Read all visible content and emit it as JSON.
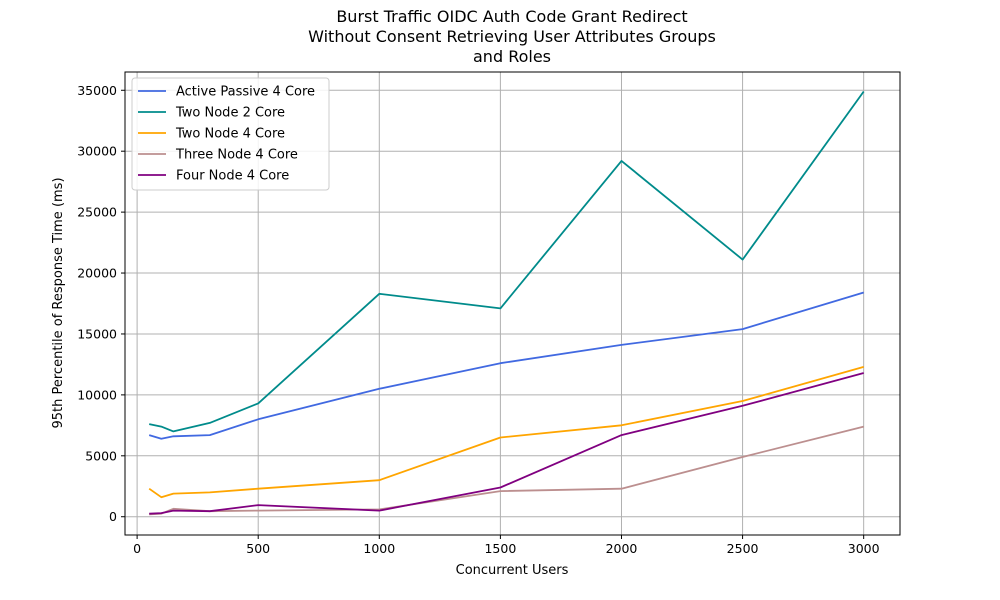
{
  "chart_data": {
    "type": "line",
    "title_lines": [
      "Burst Traffic OIDC Auth Code Grant Redirect",
      "Without Consent Retrieving User Attributes Groups",
      "and Roles"
    ],
    "xlabel": "Concurrent Users",
    "ylabel": "95th Percentile of Response Time (ms)",
    "xlim": [
      -50,
      3150
    ],
    "ylim": [
      -1500,
      36500
    ],
    "xticks": [
      0,
      500,
      1000,
      1500,
      2000,
      2500,
      3000
    ],
    "yticks": [
      0,
      5000,
      10000,
      15000,
      20000,
      25000,
      30000,
      35000
    ],
    "grid": true,
    "legend_position": "top-left",
    "x": [
      50,
      100,
      150,
      300,
      500,
      1000,
      1500,
      2000,
      2500,
      3000
    ],
    "series": [
      {
        "name": "Active Passive 4 Core",
        "color": "#4169e1",
        "values": [
          6700,
          6400,
          6600,
          6700,
          8000,
          10500,
          12600,
          14100,
          15400,
          18400
        ]
      },
      {
        "name": "Two Node 2 Core",
        "color": "#008b8b",
        "values": [
          7600,
          7400,
          7000,
          7700,
          9300,
          18300,
          17100,
          29200,
          21100,
          34900
        ]
      },
      {
        "name": "Two Node 4 Core",
        "color": "#ffa500",
        "values": [
          2300,
          1600,
          1900,
          2000,
          2300,
          3000,
          6500,
          7500,
          9500,
          12300
        ]
      },
      {
        "name": "Three Node 4 Core",
        "color": "#bc8f8f",
        "values": [
          200,
          250,
          650,
          450,
          500,
          600,
          2100,
          2300,
          4900,
          7400
        ]
      },
      {
        "name": "Four Node 4 Core",
        "color": "#800080",
        "values": [
          250,
          300,
          500,
          450,
          950,
          500,
          2400,
          6700,
          9100,
          11800
        ]
      }
    ]
  }
}
